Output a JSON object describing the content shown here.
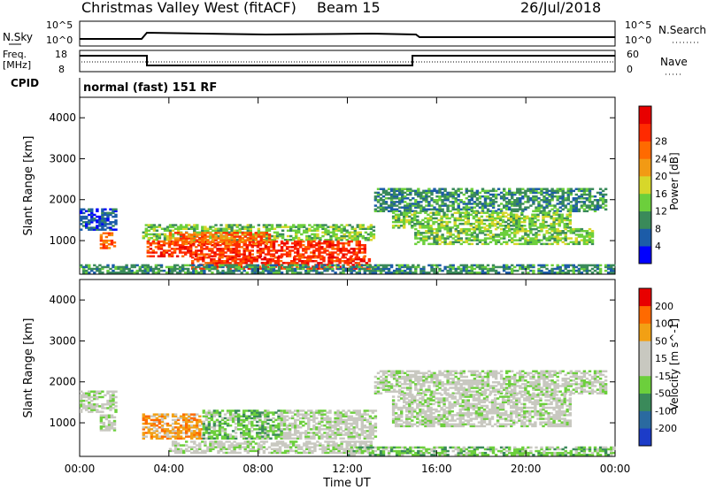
{
  "header": {
    "title": "Christmas Valley West (fitACF)",
    "beam": "Beam 15",
    "date": "26/Jul/2018"
  },
  "labels": {
    "nsky": "N.Sky",
    "nsky_hi": "10^5",
    "nsky_lo": "10^0",
    "nsearch": "N.Search",
    "nsearch_hi": "10^5",
    "nsearch_lo": "10^0",
    "freq": "Freq.",
    "freq_unit": "[MHz]",
    "freq_hi": "18",
    "freq_lo": "8",
    "nave": "Nave",
    "nave_hi": "60",
    "nave_lo": "0",
    "cpid": "CPID",
    "cpid_text": "normal (fast) 151 RF"
  },
  "chart_data": [
    {
      "type": "heatmap",
      "name": "Power",
      "ylabel": "Slant Range [km]",
      "xlabel": "Time UT",
      "x_ticks": [
        "00:00",
        "04:00",
        "08:00",
        "12:00",
        "16:00",
        "20:00",
        "00:00"
      ],
      "x_hours": [
        0,
        4,
        8,
        12,
        16,
        20,
        24
      ],
      "y_ticks": [
        1000,
        2000,
        3000,
        4000
      ],
      "ylim": [
        180,
        4500
      ],
      "colorbar_title": "Power [dB]",
      "colorbar_ticks": [
        "4",
        "8",
        "12",
        "16",
        "20",
        "24",
        "28"
      ],
      "colors": [
        "#0000ff",
        "#1c5ca8",
        "#3a8a5a",
        "#6ccf3c",
        "#d7d72a",
        "#f29a14",
        "#ff6a00",
        "#ff2a00",
        "#e80000"
      ],
      "regions": [
        {
          "t0": 0.0,
          "t1": 1.6,
          "r0": 1250,
          "r1": 1750,
          "level": 1
        },
        {
          "t0": 0.9,
          "t1": 1.6,
          "r0": 800,
          "r1": 1200,
          "level": 6
        },
        {
          "t0": 2.8,
          "t1": 13.2,
          "r0": 1000,
          "r1": 1400,
          "level": 3
        },
        {
          "t0": 3.0,
          "t1": 12.8,
          "r0": 600,
          "r1": 1000,
          "level": 7
        },
        {
          "t0": 4.0,
          "t1": 8.5,
          "r0": 900,
          "r1": 1200,
          "level": 6
        },
        {
          "t0": 5.0,
          "t1": 13.0,
          "r0": 300,
          "r1": 600,
          "level": 7
        },
        {
          "t0": 13.2,
          "t1": 23.6,
          "r0": 1700,
          "r1": 2250,
          "level": 2
        },
        {
          "t0": 14.0,
          "t1": 22.0,
          "r0": 1300,
          "r1": 1700,
          "level": 3
        },
        {
          "t0": 15.0,
          "t1": 23.0,
          "r0": 900,
          "r1": 1300,
          "level": 3
        },
        {
          "t0": 0.0,
          "t1": 24.0,
          "r0": 200,
          "r1": 400,
          "level": 2
        }
      ]
    },
    {
      "type": "heatmap",
      "name": "Velocity",
      "ylabel": "Slant Range [km]",
      "xlabel": "Time UT",
      "x_ticks": [
        "00:00",
        "04:00",
        "08:00",
        "12:00",
        "16:00",
        "20:00",
        "00:00"
      ],
      "x_hours": [
        0,
        4,
        8,
        12,
        16,
        20,
        24
      ],
      "y_ticks": [
        1000,
        2000,
        3000,
        4000
      ],
      "ylim": [
        180,
        4500
      ],
      "colorbar_title": "Velocity [m s^-1]",
      "colorbar_ticks": [
        "200",
        "100",
        "50",
        "15",
        "-15",
        "-50",
        "-100",
        "-200"
      ],
      "colors": [
        "#1c3cc8",
        "#2a6aa0",
        "#3a8a5a",
        "#6ccf3c",
        "#c8c8c0",
        "#c8c8c0",
        "#f2a014",
        "#ff6a00",
        "#e80000"
      ],
      "regions": [
        {
          "t0": 0.0,
          "t1": 1.6,
          "r0": 1250,
          "r1": 1750,
          "level": 4
        },
        {
          "t0": 0.9,
          "t1": 1.6,
          "r0": 800,
          "r1": 1200,
          "level": 4
        },
        {
          "t0": 2.8,
          "t1": 5.5,
          "r0": 600,
          "r1": 1200,
          "level": 6
        },
        {
          "t0": 5.5,
          "t1": 9.0,
          "r0": 600,
          "r1": 1300,
          "level": 3
        },
        {
          "t0": 9.0,
          "t1": 13.2,
          "r0": 600,
          "r1": 1300,
          "level": 4
        },
        {
          "t0": 4.0,
          "t1": 13.0,
          "r0": 250,
          "r1": 550,
          "level": 4
        },
        {
          "t0": 13.2,
          "t1": 23.6,
          "r0": 1700,
          "r1": 2250,
          "level": 4
        },
        {
          "t0": 14.0,
          "t1": 22.0,
          "r0": 900,
          "r1": 1700,
          "level": 4
        },
        {
          "t0": 12.0,
          "t1": 24.0,
          "r0": 200,
          "r1": 400,
          "level": 3
        }
      ]
    }
  ]
}
